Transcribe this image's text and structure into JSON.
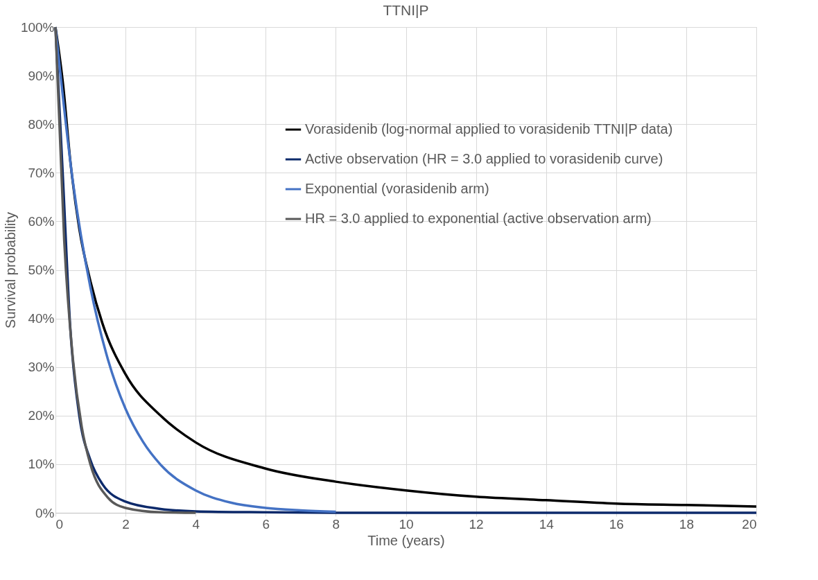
{
  "chart_data": {
    "type": "line",
    "title": "TTNI|P",
    "xlabel": "Time (years)",
    "ylabel": "Survival probability",
    "xlim": [
      0,
      20
    ],
    "xticks": [
      0,
      2,
      4,
      6,
      8,
      10,
      12,
      14,
      16,
      18,
      20
    ],
    "ylim": [
      0,
      100
    ],
    "yticks": [
      {
        "value": 0,
        "label": "0%"
      },
      {
        "value": 10,
        "label": "10%"
      },
      {
        "value": 20,
        "label": "20%"
      },
      {
        "value": 30,
        "label": "30%"
      },
      {
        "value": 40,
        "label": "40%"
      },
      {
        "value": 50,
        "label": "50%"
      },
      {
        "value": 60,
        "label": "60%"
      },
      {
        "value": 70,
        "label": "70%"
      },
      {
        "value": 80,
        "label": "80%"
      },
      {
        "value": 90,
        "label": "90%"
      },
      {
        "value": 100,
        "label": "100%"
      }
    ],
    "grid": true,
    "legend": "right",
    "marker": "none",
    "line_style": "solid",
    "series": [
      {
        "name": "Vorasidenib (log-normal applied to vorasidenib TTNI|P data)",
        "color": "#000000",
        "x": [
          0,
          0.22,
          0.42,
          0.68,
          1.0,
          1.34,
          2,
          3,
          4,
          6,
          8,
          10,
          12,
          14,
          16,
          18,
          20
        ],
        "values": [
          100,
          88,
          72.7,
          58.5,
          47.6,
          39,
          28.5,
          20,
          14.5,
          9.1,
          6.4,
          4.6,
          3.3,
          2.6,
          1.9,
          1.6,
          1.3
        ]
      },
      {
        "name": "Active observation (HR = 3.0 applied to vorasidenib curve)",
        "color": "#0d2a6b",
        "x": [
          0,
          0.22,
          0.42,
          0.68,
          1.0,
          1.34,
          2,
          3,
          4,
          6,
          8,
          10,
          12,
          14,
          16,
          18,
          20
        ],
        "values": [
          100,
          68,
          38.4,
          20,
          10.8,
          5.9,
          2.3,
          0.8,
          0.3,
          0.1,
          0,
          0,
          0,
          0,
          0,
          0,
          0
        ]
      },
      {
        "name": "Exponential (vorasidenib arm)",
        "color": "#4472c4",
        "x": [
          0,
          0.5,
          1,
          1.5,
          2,
          2.5,
          3,
          4,
          5,
          6,
          7,
          8
        ],
        "values": [
          100,
          68,
          46.3,
          31.5,
          21.4,
          14.6,
          9.9,
          4.6,
          2.1,
          1.0,
          0.5,
          0.2
        ]
      },
      {
        "name": "HR = 3.0 applied to exponential (active observation arm)",
        "color": "#595959",
        "x": [
          0,
          0.25,
          0.5,
          0.75,
          1,
          1.5,
          2,
          3,
          4
        ],
        "values": [
          100,
          56,
          31.5,
          17.7,
          9.9,
          3.1,
          1.0,
          0.1,
          0
        ]
      }
    ]
  }
}
